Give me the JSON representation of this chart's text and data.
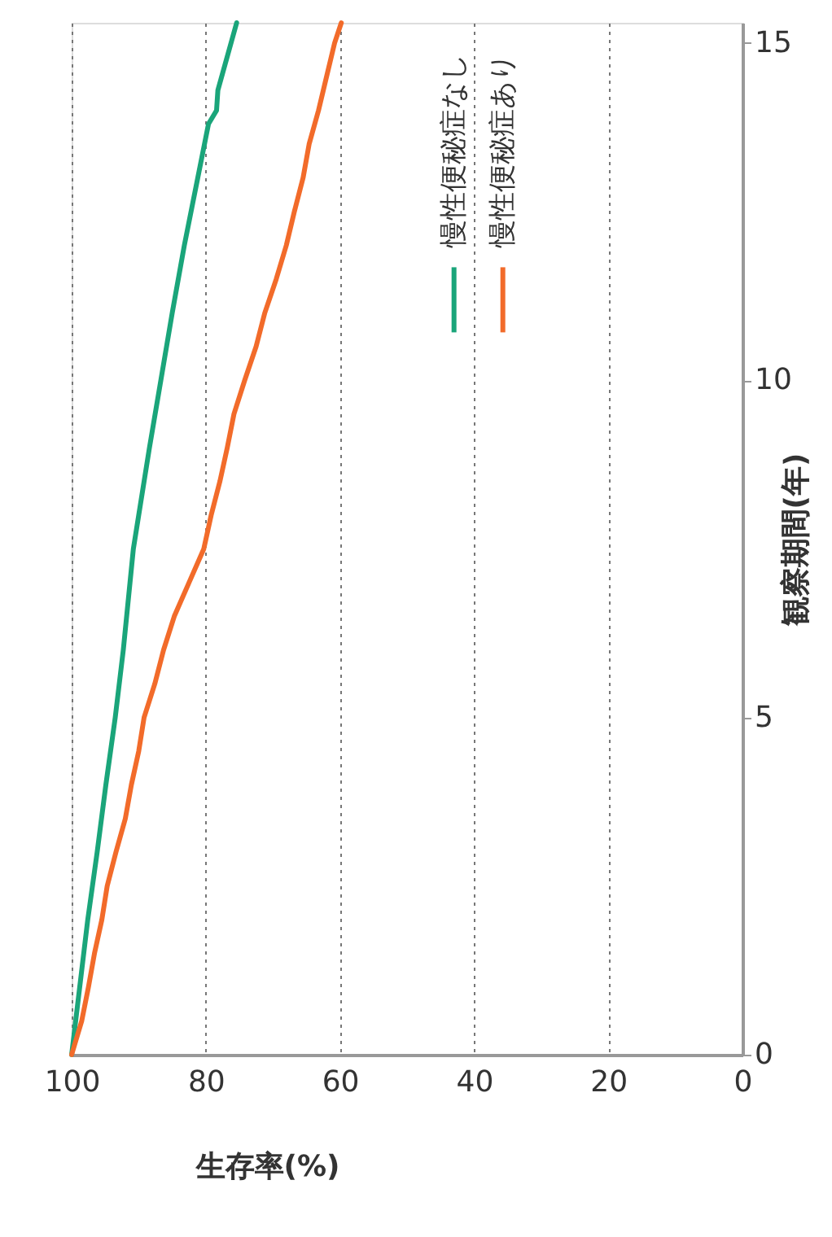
{
  "chart_data": {
    "type": "line",
    "xlabel": "生存率(%)",
    "ylabel": "観察期間(年)",
    "xlim": [
      100,
      0
    ],
    "xticks": [
      100,
      80,
      60,
      40,
      20,
      0
    ],
    "ylim": [
      0,
      15.3
    ],
    "yticks": [
      0,
      5,
      10,
      15
    ],
    "grid": "x",
    "legend": "right",
    "marker": "none",
    "line_style": "solid",
    "series": [
      {
        "name": "慢性便秘症なし",
        "color": "#1aa57a",
        "values": [
          0,
          1,
          2,
          3,
          4,
          5,
          6,
          7,
          7.5,
          8,
          9,
          10,
          11,
          12,
          13,
          13.8,
          14,
          14.3,
          15.3
        ],
        "x": [
          100,
          98.8,
          97.6,
          96.2,
          94.9,
          93.5,
          92.3,
          91.3,
          90.8,
          90,
          88.4,
          86.7,
          85,
          83.2,
          81.2,
          79.6,
          78.4,
          78.2,
          75.4
        ]
      },
      {
        "name": "慢性便秘症あり",
        "color": "#f26b2a",
        "values": [
          0,
          0.5,
          1,
          1.5,
          2,
          2.5,
          3,
          3.5,
          4,
          4.5,
          5,
          5.5,
          6,
          6.5,
          7,
          7.5,
          8,
          8.5,
          9,
          9.5,
          10,
          10.5,
          11,
          11.5,
          12,
          12.5,
          13,
          13.5,
          14,
          14.5,
          15,
          15.3
        ],
        "x": [
          100,
          98.5,
          97.5,
          96.6,
          95.5,
          94.7,
          93.4,
          92,
          91.1,
          90,
          89.2,
          87.6,
          86.3,
          84.7,
          82.5,
          80.3,
          79.2,
          77.9,
          76.8,
          75.8,
          74.2,
          72.5,
          71.2,
          69.5,
          68,
          66.8,
          65.5,
          64.6,
          63.2,
          62,
          60.8,
          59.8
        ]
      }
    ]
  }
}
